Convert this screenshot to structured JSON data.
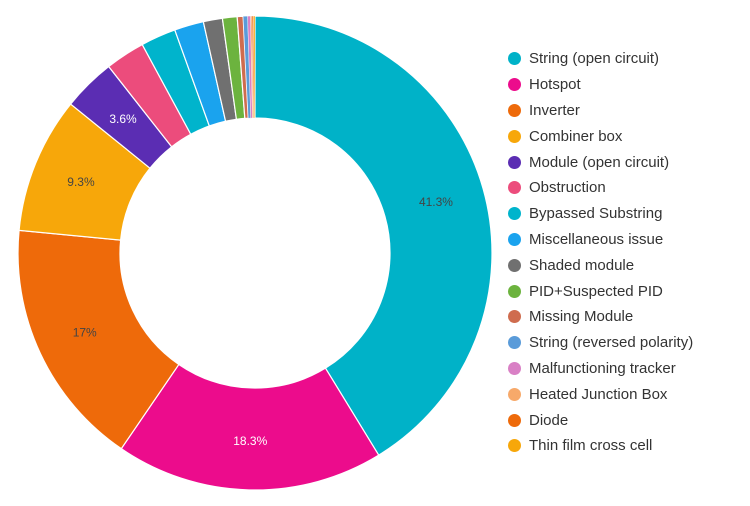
{
  "chart_data": {
    "type": "pie",
    "donut": true,
    "legend_position": "right",
    "series": [
      {
        "name": "String (open circuit)",
        "value": 41.3,
        "label": "41.3%",
        "color": "#00B2C8",
        "label_color": "#444444"
      },
      {
        "name": "Hotspot",
        "value": 18.3,
        "label": "18.3%",
        "color": "#EC0C8C",
        "label_color": "#ffffff"
      },
      {
        "name": "Inverter",
        "value": 17.0,
        "label": "17%",
        "color": "#EE6A0A",
        "label_color": "#444444"
      },
      {
        "name": "Combiner box",
        "value": 9.3,
        "label": "9.3%",
        "color": "#F7A70A",
        "label_color": "#444444"
      },
      {
        "name": "Module (open circuit)",
        "value": 3.6,
        "label": "3.6%",
        "color": "#5B2DB3",
        "label_color": "#ffffff"
      },
      {
        "name": "Obstruction",
        "value": 2.7,
        "label": "",
        "color": "#EC4C7C",
        "label_color": "#444444"
      },
      {
        "name": "Bypassed Substring",
        "value": 2.4,
        "label": "",
        "color": "#00B4CC",
        "label_color": "#444444"
      },
      {
        "name": "Miscellaneous issue",
        "value": 2.0,
        "label": "",
        "color": "#1AA3EE",
        "label_color": "#444444"
      },
      {
        "name": "Shaded module",
        "value": 1.3,
        "label": "",
        "color": "#707070",
        "label_color": "#444444"
      },
      {
        "name": "PID+Suspected PID",
        "value": 1.0,
        "label": "",
        "color": "#6CB33E",
        "label_color": "#444444"
      },
      {
        "name": "Missing Module",
        "value": 0.4,
        "label": "",
        "color": "#CF6C4E",
        "label_color": "#444444"
      },
      {
        "name": "String (reversed polarity)",
        "value": 0.3,
        "label": "",
        "color": "#5A9BD9",
        "label_color": "#444444"
      },
      {
        "name": "Malfunctioning tracker",
        "value": 0.2,
        "label": "",
        "color": "#D980C5",
        "label_color": "#444444"
      },
      {
        "name": "Heated Junction Box",
        "value": 0.1,
        "label": "",
        "color": "#F7A96A",
        "label_color": "#444444"
      },
      {
        "name": "Diode",
        "value": 0.1,
        "label": "",
        "color": "#EE6A0A",
        "label_color": "#444444"
      },
      {
        "name": "Thin film cross cell",
        "value": 0.1,
        "label": "",
        "color": "#F7A70A",
        "label_color": "#444444"
      }
    ]
  }
}
